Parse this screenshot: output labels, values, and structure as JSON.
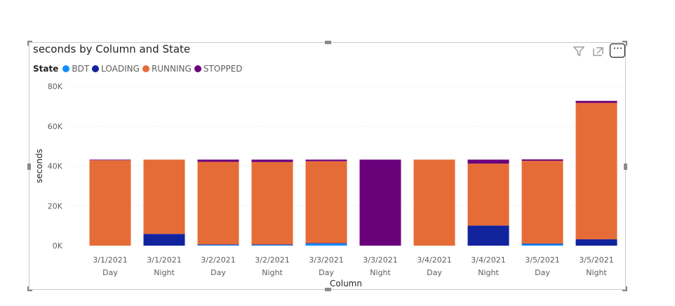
{
  "visual": {
    "title": "seconds by Column and State",
    "legend_title": "State",
    "legend": [
      {
        "name": "BDT",
        "color": "#118DFF"
      },
      {
        "name": "LOADING",
        "color": "#12239E"
      },
      {
        "name": "RUNNING",
        "color": "#E66C37"
      },
      {
        "name": "STOPPED",
        "color": "#6B007B"
      }
    ],
    "icons": {
      "filter": "filter-icon",
      "focus": "focus-mode-icon",
      "more": "more-options-icon"
    },
    "more_label": "⋯"
  },
  "chart_data": {
    "type": "bar",
    "stacked": true,
    "title": "seconds by Column and State",
    "xlabel": "Column",
    "ylabel": "seconds",
    "ylim": [
      0,
      80000
    ],
    "yticks": [
      0,
      20000,
      40000,
      60000,
      80000
    ],
    "ytick_labels": [
      "0K",
      "20K",
      "40K",
      "60K",
      "80K"
    ],
    "grid": true,
    "legend_position": "top-left",
    "categories": [
      [
        "3/1/2021",
        "Day"
      ],
      [
        "3/1/2021",
        "Night"
      ],
      [
        "3/2/2021",
        "Day"
      ],
      [
        "3/2/2021",
        "Night"
      ],
      [
        "3/3/2021",
        "Day"
      ],
      [
        "3/3/2021",
        "Night"
      ],
      [
        "3/4/2021",
        "Day"
      ],
      [
        "3/4/2021",
        "Night"
      ],
      [
        "3/5/2021",
        "Day"
      ],
      [
        "3/5/2021",
        "Night"
      ]
    ],
    "series": [
      {
        "name": "BDT",
        "color": "#118DFF",
        "values": [
          0,
          0,
          300,
          300,
          1000,
          0,
          0,
          0,
          800,
          0
        ]
      },
      {
        "name": "LOADING",
        "color": "#12239E",
        "values": [
          0,
          5900,
          300,
          300,
          300,
          0,
          0,
          10100,
          300,
          3200
        ]
      },
      {
        "name": "RUNNING",
        "color": "#E66C37",
        "values": [
          42900,
          37300,
          41500,
          41400,
          41100,
          0,
          43200,
          31100,
          41500,
          68500
        ]
      },
      {
        "name": "STOPPED",
        "color": "#6B007B",
        "values": [
          300,
          0,
          1100,
          1200,
          800,
          43200,
          0,
          2000,
          700,
          1000
        ]
      }
    ]
  }
}
